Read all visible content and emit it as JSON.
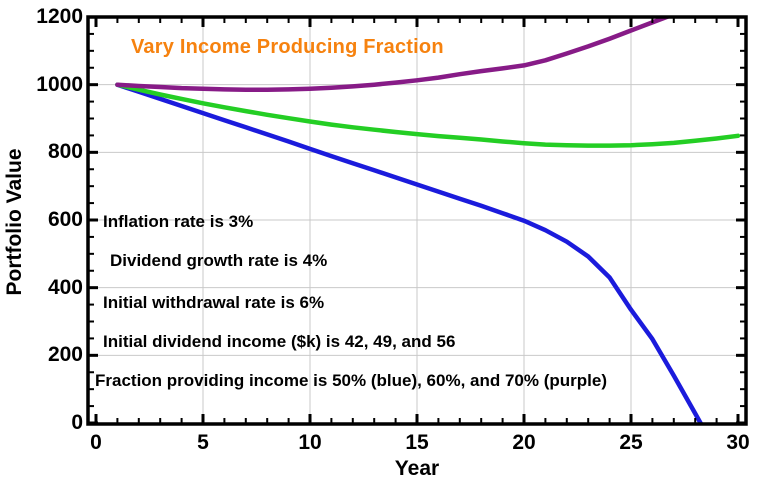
{
  "chart_data": {
    "type": "line",
    "title": "Vary Income Producing Fraction",
    "title_color": "#F6820F",
    "xlabel": "Year",
    "ylabel": "Portfolio Value",
    "xlim": [
      0,
      30
    ],
    "ylim": [
      0,
      1200
    ],
    "grid": true,
    "grid_color": "#C9C9C9",
    "x_major_ticks": [
      0,
      5,
      10,
      15,
      20,
      25,
      30
    ],
    "x_tick_labels": [
      "0",
      "5",
      "10",
      "15",
      "20",
      "25",
      "30"
    ],
    "x_minor_step": 1,
    "y_major_ticks": [
      0,
      200,
      400,
      600,
      800,
      1000,
      1200
    ],
    "y_tick_labels": [
      "0",
      "200",
      "400",
      "600",
      "800",
      "1000",
      "1200"
    ],
    "y_minor_step": 50,
    "annotations": [
      "Inflation rate is 3%",
      "Dividend growth rate is 4%",
      "Initial withdrawal rate is 6%",
      "Initial dividend income ($k) is 42, 49, and 56",
      "Fraction providing income is 50%  (blue), 60%, and 70% (purple)"
    ],
    "series": [
      {
        "key": "blue-50",
        "name": "50% (blue)",
        "color": "#1B1BDC",
        "points": [
          [
            1,
            1000
          ],
          [
            2,
            979
          ],
          [
            3,
            958
          ],
          [
            4,
            937
          ],
          [
            5,
            916
          ],
          [
            6,
            895
          ],
          [
            7,
            874
          ],
          [
            8,
            853
          ],
          [
            9,
            832
          ],
          [
            10,
            810
          ],
          [
            11,
            789
          ],
          [
            12,
            768
          ],
          [
            13,
            747
          ],
          [
            14,
            726
          ],
          [
            15,
            705
          ],
          [
            16,
            684
          ],
          [
            17,
            663
          ],
          [
            18,
            642
          ],
          [
            19,
            620
          ],
          [
            20,
            598
          ],
          [
            21,
            570
          ],
          [
            22,
            536
          ],
          [
            23,
            492
          ],
          [
            24,
            430
          ],
          [
            25,
            335
          ],
          [
            26,
            248
          ],
          [
            27,
            140
          ],
          [
            28,
            28
          ],
          [
            28.25,
            0
          ]
        ]
      },
      {
        "key": "green-60",
        "name": "60%",
        "color": "#24CE24",
        "points": [
          [
            1,
            1000
          ],
          [
            2,
            985
          ],
          [
            3,
            971
          ],
          [
            4,
            958
          ],
          [
            5,
            945
          ],
          [
            6,
            933
          ],
          [
            7,
            922
          ],
          [
            8,
            911
          ],
          [
            9,
            901
          ],
          [
            10,
            891
          ],
          [
            11,
            882
          ],
          [
            12,
            874
          ],
          [
            13,
            867
          ],
          [
            14,
            860
          ],
          [
            15,
            854
          ],
          [
            16,
            848
          ],
          [
            17,
            843
          ],
          [
            18,
            838
          ],
          [
            19,
            832
          ],
          [
            20,
            827
          ],
          [
            21,
            823
          ],
          [
            22,
            821
          ],
          [
            23,
            820
          ],
          [
            24,
            820
          ],
          [
            25,
            821
          ],
          [
            26,
            824
          ],
          [
            27,
            828
          ],
          [
            28,
            834
          ],
          [
            29,
            841
          ],
          [
            30,
            849
          ]
        ]
      },
      {
        "key": "purple-70",
        "name": "70% (purple)",
        "color": "#871B87",
        "points": [
          [
            1,
            1000
          ],
          [
            2,
            996
          ],
          [
            3,
            993
          ],
          [
            4,
            990
          ],
          [
            5,
            988
          ],
          [
            6,
            986
          ],
          [
            7,
            985
          ],
          [
            8,
            985
          ],
          [
            9,
            986
          ],
          [
            10,
            988
          ],
          [
            11,
            991
          ],
          [
            12,
            995
          ],
          [
            13,
            1000
          ],
          [
            14,
            1006
          ],
          [
            15,
            1013
          ],
          [
            16,
            1021
          ],
          [
            17,
            1031
          ],
          [
            18,
            1040
          ],
          [
            19,
            1048
          ],
          [
            20,
            1057
          ],
          [
            21,
            1072
          ],
          [
            22,
            1092
          ],
          [
            23,
            1113
          ],
          [
            24,
            1136
          ],
          [
            25,
            1160
          ],
          [
            26,
            1184
          ],
          [
            27,
            1208
          ],
          [
            27.6,
            1225
          ]
        ]
      }
    ]
  }
}
